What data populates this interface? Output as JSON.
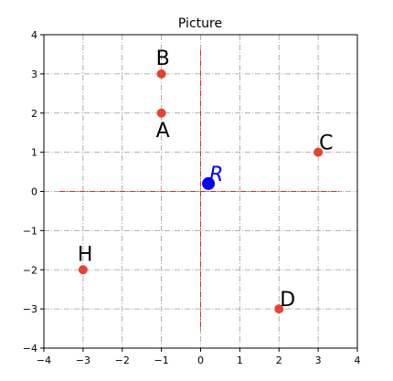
{
  "chart_data": {
    "type": "scatter",
    "title": "Picture",
    "xlim": [
      -4,
      4
    ],
    "ylim": [
      -4,
      4
    ],
    "xticks": [
      -4,
      -3,
      -2,
      -1,
      0,
      1,
      2,
      3,
      4
    ],
    "yticks": [
      -4,
      -3,
      -2,
      -1,
      0,
      1,
      2,
      3,
      4
    ],
    "xtick_labels": [
      "−4",
      "−3",
      "−2",
      "−1",
      "0",
      "1",
      "2",
      "3",
      "4"
    ],
    "ytick_labels": [
      "−4",
      "−3",
      "−2",
      "−1",
      "0",
      "1",
      "2",
      "3",
      "4"
    ],
    "grid": true,
    "crosshair": {
      "color": "#d62728",
      "extent": [
        -3.6,
        3.6
      ]
    },
    "points": [
      {
        "label": "B",
        "x": -1,
        "y": 3,
        "color": "#e8412d",
        "label_pos": "above"
      },
      {
        "label": "A",
        "x": -1,
        "y": 2,
        "color": "#e8412d",
        "label_pos": "below"
      },
      {
        "label": "C",
        "x": 3,
        "y": 1,
        "color": "#e8412d",
        "label_pos": "above-right"
      },
      {
        "label": "H",
        "x": -3,
        "y": -2,
        "color": "#e8412d",
        "label_pos": "above"
      },
      {
        "label": "D",
        "x": 2,
        "y": -3,
        "color": "#e8412d",
        "label_pos": "above-right"
      },
      {
        "label": "R",
        "x": 0.2,
        "y": 0.2,
        "color": "#0000ff",
        "label_pos": "above-right",
        "special": true
      }
    ]
  }
}
